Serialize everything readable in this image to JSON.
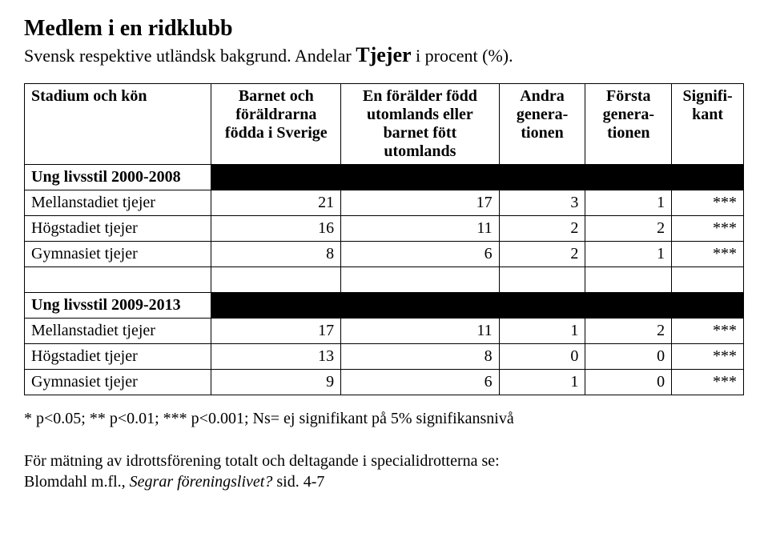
{
  "title": {
    "bold": "Medlem i en ridklubb"
  },
  "subtitle": {
    "pre": "Svensk respektive utländsk bakgrund. Andelar ",
    "emph": "Tjejer",
    "post": " i procent (%)."
  },
  "table": {
    "headers": {
      "rowhead": "Stadium och kön",
      "col1": "Barnet och föräldrarna födda i Sverige",
      "col2": "En förälder född utomlands eller barnet fött utomlands",
      "col3": "Andra genera-tionen",
      "col4": "Första genera-tionen",
      "col5": "Signifi-kant"
    },
    "section1_label": "Ung livsstil 2000-2008",
    "section2_label": "Ung livsstil 2009-2013",
    "rows1": [
      {
        "label": "Mellanstadiet tjejer",
        "c1": "21",
        "c2": "17",
        "c3": "3",
        "c4": "1",
        "c5": "***"
      },
      {
        "label": "Högstadiet tjejer",
        "c1": "16",
        "c2": "11",
        "c3": "2",
        "c4": "2",
        "c5": "***"
      },
      {
        "label": "Gymnasiet tjejer",
        "c1": "8",
        "c2": "6",
        "c3": "2",
        "c4": "1",
        "c5": "***"
      }
    ],
    "rows2": [
      {
        "label": "Mellanstadiet tjejer",
        "c1": "17",
        "c2": "11",
        "c3": "1",
        "c4": "2",
        "c5": "***"
      },
      {
        "label": "Högstadiet tjejer",
        "c1": "13",
        "c2": "8",
        "c3": "0",
        "c4": "0",
        "c5": "***"
      },
      {
        "label": "Gymnasiet tjejer",
        "c1": "9",
        "c2": "6",
        "c3": "1",
        "c4": "0",
        "c5": "***"
      }
    ],
    "col_widths": [
      "26%",
      "18%",
      "22%",
      "12%",
      "12%",
      "10%"
    ],
    "background_color": "#ffffff",
    "section_bar_color": "#000000",
    "border_color": "#000000"
  },
  "footnote": "* p<0.05; ** p<0.01; *** p<0.001; Ns= ej signifikant på 5% signifikansnivå",
  "bottom_note": {
    "line1": "För mätning av idrottsförening totalt och deltagande i specialidrotterna se:",
    "line2_pre": "Blomdahl m.fl., ",
    "line2_italic": "Segrar föreningslivet?",
    "line2_post": " sid. 4-7"
  }
}
